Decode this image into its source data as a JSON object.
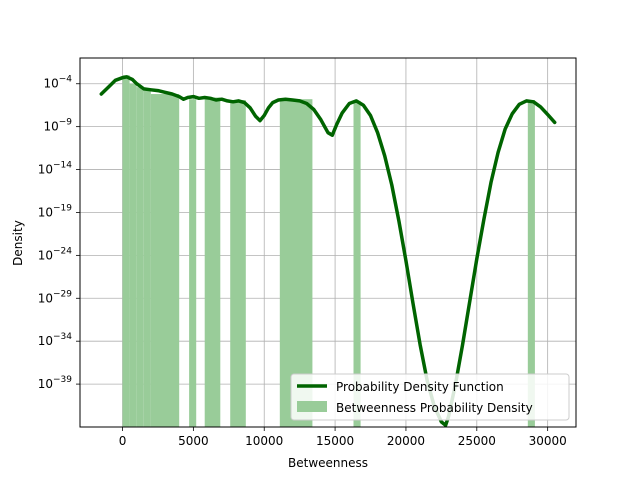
{
  "chart_data": {
    "type": "histogram+line",
    "xlabel": "Betweenness",
    "ylabel": "Density",
    "y_scale": "log",
    "grid": true,
    "legend_position": "lower-right",
    "xlim": [
      -3000,
      32000
    ],
    "ylim_exp": [
      -44,
      -1
    ],
    "x_ticks": [
      0,
      5000,
      10000,
      15000,
      20000,
      25000,
      30000
    ],
    "y_ticks_exp": [
      -4,
      -9,
      -14,
      -19,
      -24,
      -29,
      -34,
      -39
    ],
    "y_tick_base": "10",
    "colors": {
      "line": "#006400",
      "bars": "#99cc99",
      "grid": "#b0b0b0"
    },
    "series": [
      {
        "name": "Probability Density Function",
        "kind": "line",
        "x": [
          -1500,
          -1000,
          -500,
          0,
          300,
          700,
          1000,
          1500,
          2000,
          2500,
          3000,
          3500,
          4000,
          4300,
          4600,
          5000,
          5400,
          5800,
          6200,
          6600,
          7000,
          7400,
          7800,
          8200,
          8600,
          9000,
          9400,
          9700,
          10000,
          10300,
          10600,
          11000,
          11500,
          12000,
          12500,
          13000,
          13500,
          14000,
          14500,
          14800,
          15100,
          15500,
          16000,
          16500,
          17000,
          17500,
          18000,
          18500,
          19000,
          19500,
          20000,
          20500,
          21000,
          21500,
          22000,
          22500,
          22800,
          23000,
          23500,
          24000,
          24500,
          25000,
          25500,
          26000,
          26500,
          27000,
          27500,
          28000,
          28500,
          29000,
          29500,
          30000,
          30500
        ],
        "log10_y": [
          -5.2,
          -4.4,
          -3.6,
          -3.3,
          -3.2,
          -3.5,
          -4.0,
          -4.6,
          -4.7,
          -4.8,
          -5.0,
          -5.2,
          -5.5,
          -5.8,
          -5.6,
          -5.5,
          -5.7,
          -5.6,
          -5.7,
          -5.9,
          -5.8,
          -6.0,
          -6.1,
          -6.0,
          -6.2,
          -6.8,
          -7.8,
          -8.3,
          -7.7,
          -6.8,
          -6.2,
          -5.9,
          -5.8,
          -5.9,
          -6.0,
          -6.3,
          -7.0,
          -8.2,
          -9.7,
          -10.0,
          -8.8,
          -7.4,
          -6.3,
          -6.0,
          -6.5,
          -7.7,
          -9.7,
          -12.4,
          -15.8,
          -20.0,
          -24.6,
          -29.6,
          -34.4,
          -38.6,
          -41.6,
          -43.4,
          -43.8,
          -42.8,
          -39.0,
          -34.4,
          -29.4,
          -24.4,
          -19.8,
          -15.5,
          -12.0,
          -9.3,
          -7.5,
          -6.4,
          -6.0,
          -6.1,
          -6.7,
          -7.6,
          -8.5
        ]
      },
      {
        "name": "Betweenness Probability Density",
        "kind": "bar",
        "bins": [
          {
            "x0": 0,
            "x1": 500,
            "log10_y": -3.0
          },
          {
            "x0": 500,
            "x1": 1000,
            "log10_y": -4.0
          },
          {
            "x0": 1000,
            "x1": 1500,
            "log10_y": -4.4
          },
          {
            "x0": 1500,
            "x1": 2000,
            "log10_y": -4.8
          },
          {
            "x0": 2000,
            "x1": 4000,
            "log10_y": -5.2
          },
          {
            "x0": 4700,
            "x1": 5200,
            "log10_y": -5.8
          },
          {
            "x0": 5800,
            "x1": 6900,
            "log10_y": -5.6
          },
          {
            "x0": 7600,
            "x1": 8700,
            "log10_y": -5.9
          },
          {
            "x0": 11100,
            "x1": 13400,
            "log10_y": -5.8
          },
          {
            "x0": 16300,
            "x1": 16800,
            "log10_y": -6.0
          },
          {
            "x0": 28600,
            "x1": 29100,
            "log10_y": -5.9
          }
        ]
      }
    ]
  }
}
